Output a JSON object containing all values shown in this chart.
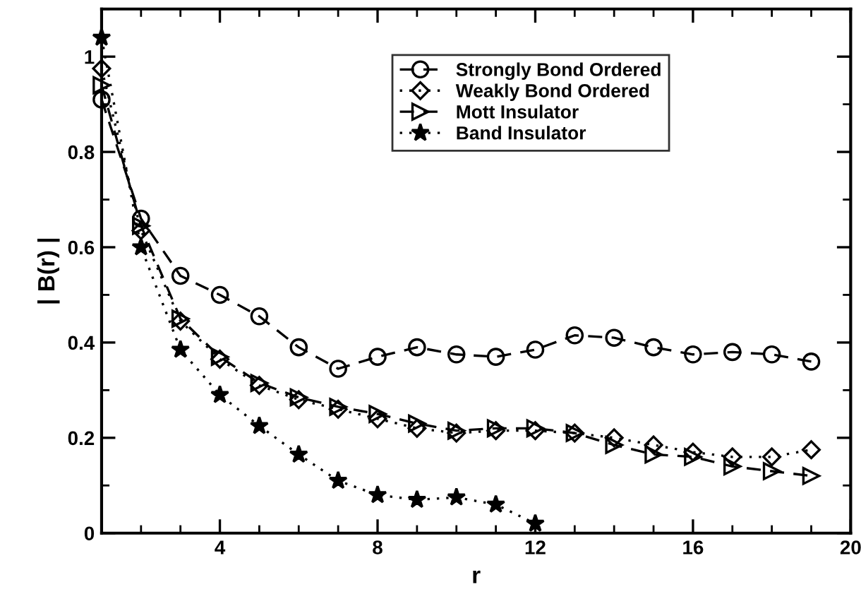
{
  "chart_data": {
    "type": "line",
    "xlabel": "r",
    "ylabel": "| B(r) |",
    "x": [
      1,
      2,
      3,
      4,
      5,
      6,
      7,
      8,
      9,
      10,
      11,
      12,
      13,
      14,
      15,
      16,
      17,
      18,
      19
    ],
    "xlim": [
      1,
      20
    ],
    "xticks": [
      4,
      8,
      12,
      16,
      20
    ],
    "ylim": [
      0,
      1.1
    ],
    "yticks": [
      0,
      0.2,
      0.4,
      0.6,
      0.8,
      1
    ],
    "grid": false,
    "legend": "top right",
    "series": [
      {
        "name": "Strongly Bond Ordered",
        "color": "#000000",
        "marker": "circle",
        "line_style": "dashed",
        "values": [
          0.91,
          0.66,
          0.54,
          0.5,
          0.455,
          0.39,
          0.345,
          0.37,
          0.39,
          0.375,
          0.37,
          0.385,
          0.415,
          0.41,
          0.39,
          0.375,
          0.38,
          0.375,
          0.36
        ]
      },
      {
        "name": "Weakly Bond Ordered",
        "color": "#000000",
        "marker": "diamond",
        "line_style": "dotted",
        "values": [
          0.975,
          0.635,
          0.445,
          0.365,
          0.31,
          0.28,
          0.26,
          0.24,
          0.22,
          0.21,
          0.215,
          0.215,
          0.21,
          0.2,
          0.185,
          0.17,
          0.16,
          0.16,
          0.175
        ]
      },
      {
        "name": "Mott Insulator",
        "color": "#000000",
        "marker": "triangle",
        "line_style": "dashed",
        "values": [
          0.94,
          0.645,
          0.45,
          0.37,
          0.315,
          0.285,
          0.265,
          0.25,
          0.23,
          0.215,
          0.22,
          0.22,
          0.21,
          0.185,
          0.165,
          0.16,
          0.14,
          0.13,
          0.12
        ]
      },
      {
        "name": "Band Insulator",
        "color": "#000000",
        "marker": "star",
        "line_style": "dotted",
        "values": [
          1.04,
          0.6,
          0.385,
          0.29,
          0.225,
          0.165,
          0.11,
          0.08,
          0.07,
          0.075,
          0.06,
          0.02,
          null,
          null,
          null,
          null,
          null,
          null,
          null
        ]
      }
    ]
  }
}
